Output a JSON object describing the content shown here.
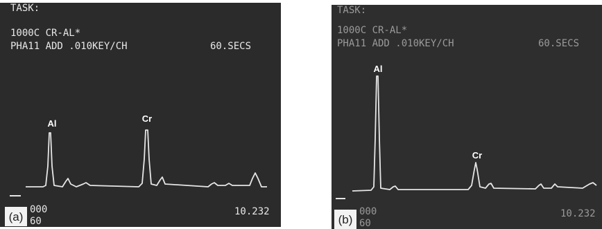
{
  "panels": [
    {
      "label": "(a)",
      "header": [
        "TASK:",
        "1000C CR-AL*",
        "PHA11 ADD .010KEY/CH"
      ],
      "time": "60.SECS",
      "peaks": [
        "Al",
        "Cr"
      ],
      "footer_left": [
        "000",
        "60"
      ],
      "footer_right": "10.232"
    },
    {
      "label": "(b)",
      "header": [
        "TASK:",
        "1000C CR-AL*",
        "PHA11 ADD .010KEY/CH"
      ],
      "time": "60.SECS",
      "peaks": [
        "Al",
        "Cr"
      ],
      "footer_left": [
        "000",
        "60"
      ],
      "footer_right": "10.232"
    }
  ]
}
